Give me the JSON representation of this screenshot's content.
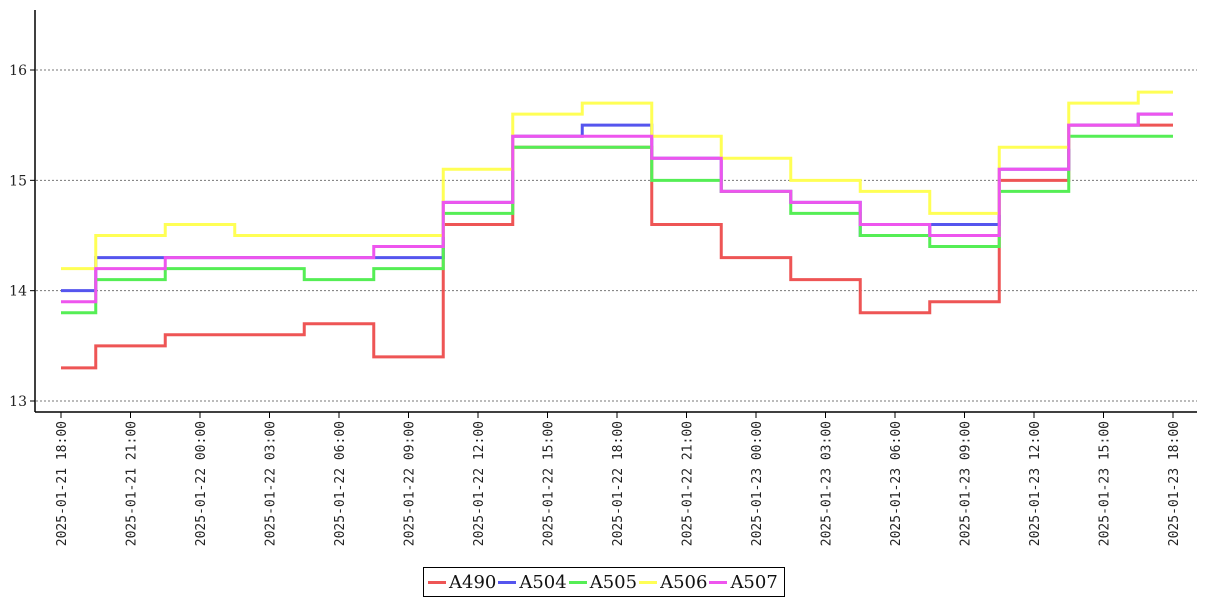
{
  "chart_data": {
    "type": "line",
    "title": "",
    "xlabel": "",
    "ylabel": "",
    "x": [
      "2025-01-21 18:00",
      "2025-01-21 21:00",
      "2025-01-22 00:00",
      "2025-01-22 03:00",
      "2025-01-22 06:00",
      "2025-01-22 09:00",
      "2025-01-22 12:00",
      "2025-01-22 15:00",
      "2025-01-22 18:00",
      "2025-01-22 21:00",
      "2025-01-23 00:00",
      "2025-01-23 03:00",
      "2025-01-23 06:00",
      "2025-01-23 09:00",
      "2025-01-23 12:00",
      "2025-01-23 15:00",
      "2025-01-23 18:00"
    ],
    "ylim": [
      12.9,
      16.55
    ],
    "yticks": [
      13,
      14,
      15,
      16
    ],
    "grid": "horizontal dotted",
    "legend": "bottom-center",
    "series": [
      {
        "name": "A490",
        "color": "#ee5555",
        "values": [
          13.3,
          13.5,
          13.6,
          13.6,
          13.7,
          13.4,
          14.6,
          15.3,
          15.3,
          14.6,
          14.3,
          14.1,
          13.8,
          13.9,
          15.0,
          15.5,
          15.5
        ]
      },
      {
        "name": "A504",
        "color": "#5555ee",
        "values": [
          14.0,
          14.3,
          14.3,
          14.3,
          14.3,
          14.3,
          14.8,
          15.4,
          15.5,
          15.2,
          14.9,
          14.8,
          14.5,
          14.6,
          15.1,
          15.5,
          15.6
        ]
      },
      {
        "name": "A505",
        "color": "#55ee55",
        "values": [
          13.8,
          14.1,
          14.2,
          14.2,
          14.1,
          14.2,
          14.7,
          15.3,
          15.3,
          15.0,
          14.9,
          14.7,
          14.5,
          14.4,
          14.9,
          15.4,
          15.4
        ]
      },
      {
        "name": "A506",
        "color": "#ffff55",
        "values": [
          14.2,
          14.5,
          14.6,
          14.5,
          14.5,
          14.5,
          15.1,
          15.6,
          15.7,
          15.4,
          15.2,
          15.0,
          14.9,
          14.7,
          15.3,
          15.7,
          15.8
        ]
      },
      {
        "name": "A507",
        "color": "#ee55ee",
        "values": [
          13.9,
          14.2,
          14.3,
          14.3,
          14.3,
          14.4,
          14.8,
          15.4,
          15.4,
          15.2,
          14.9,
          14.8,
          14.6,
          14.5,
          15.1,
          15.5,
          15.6
        ]
      }
    ]
  }
}
